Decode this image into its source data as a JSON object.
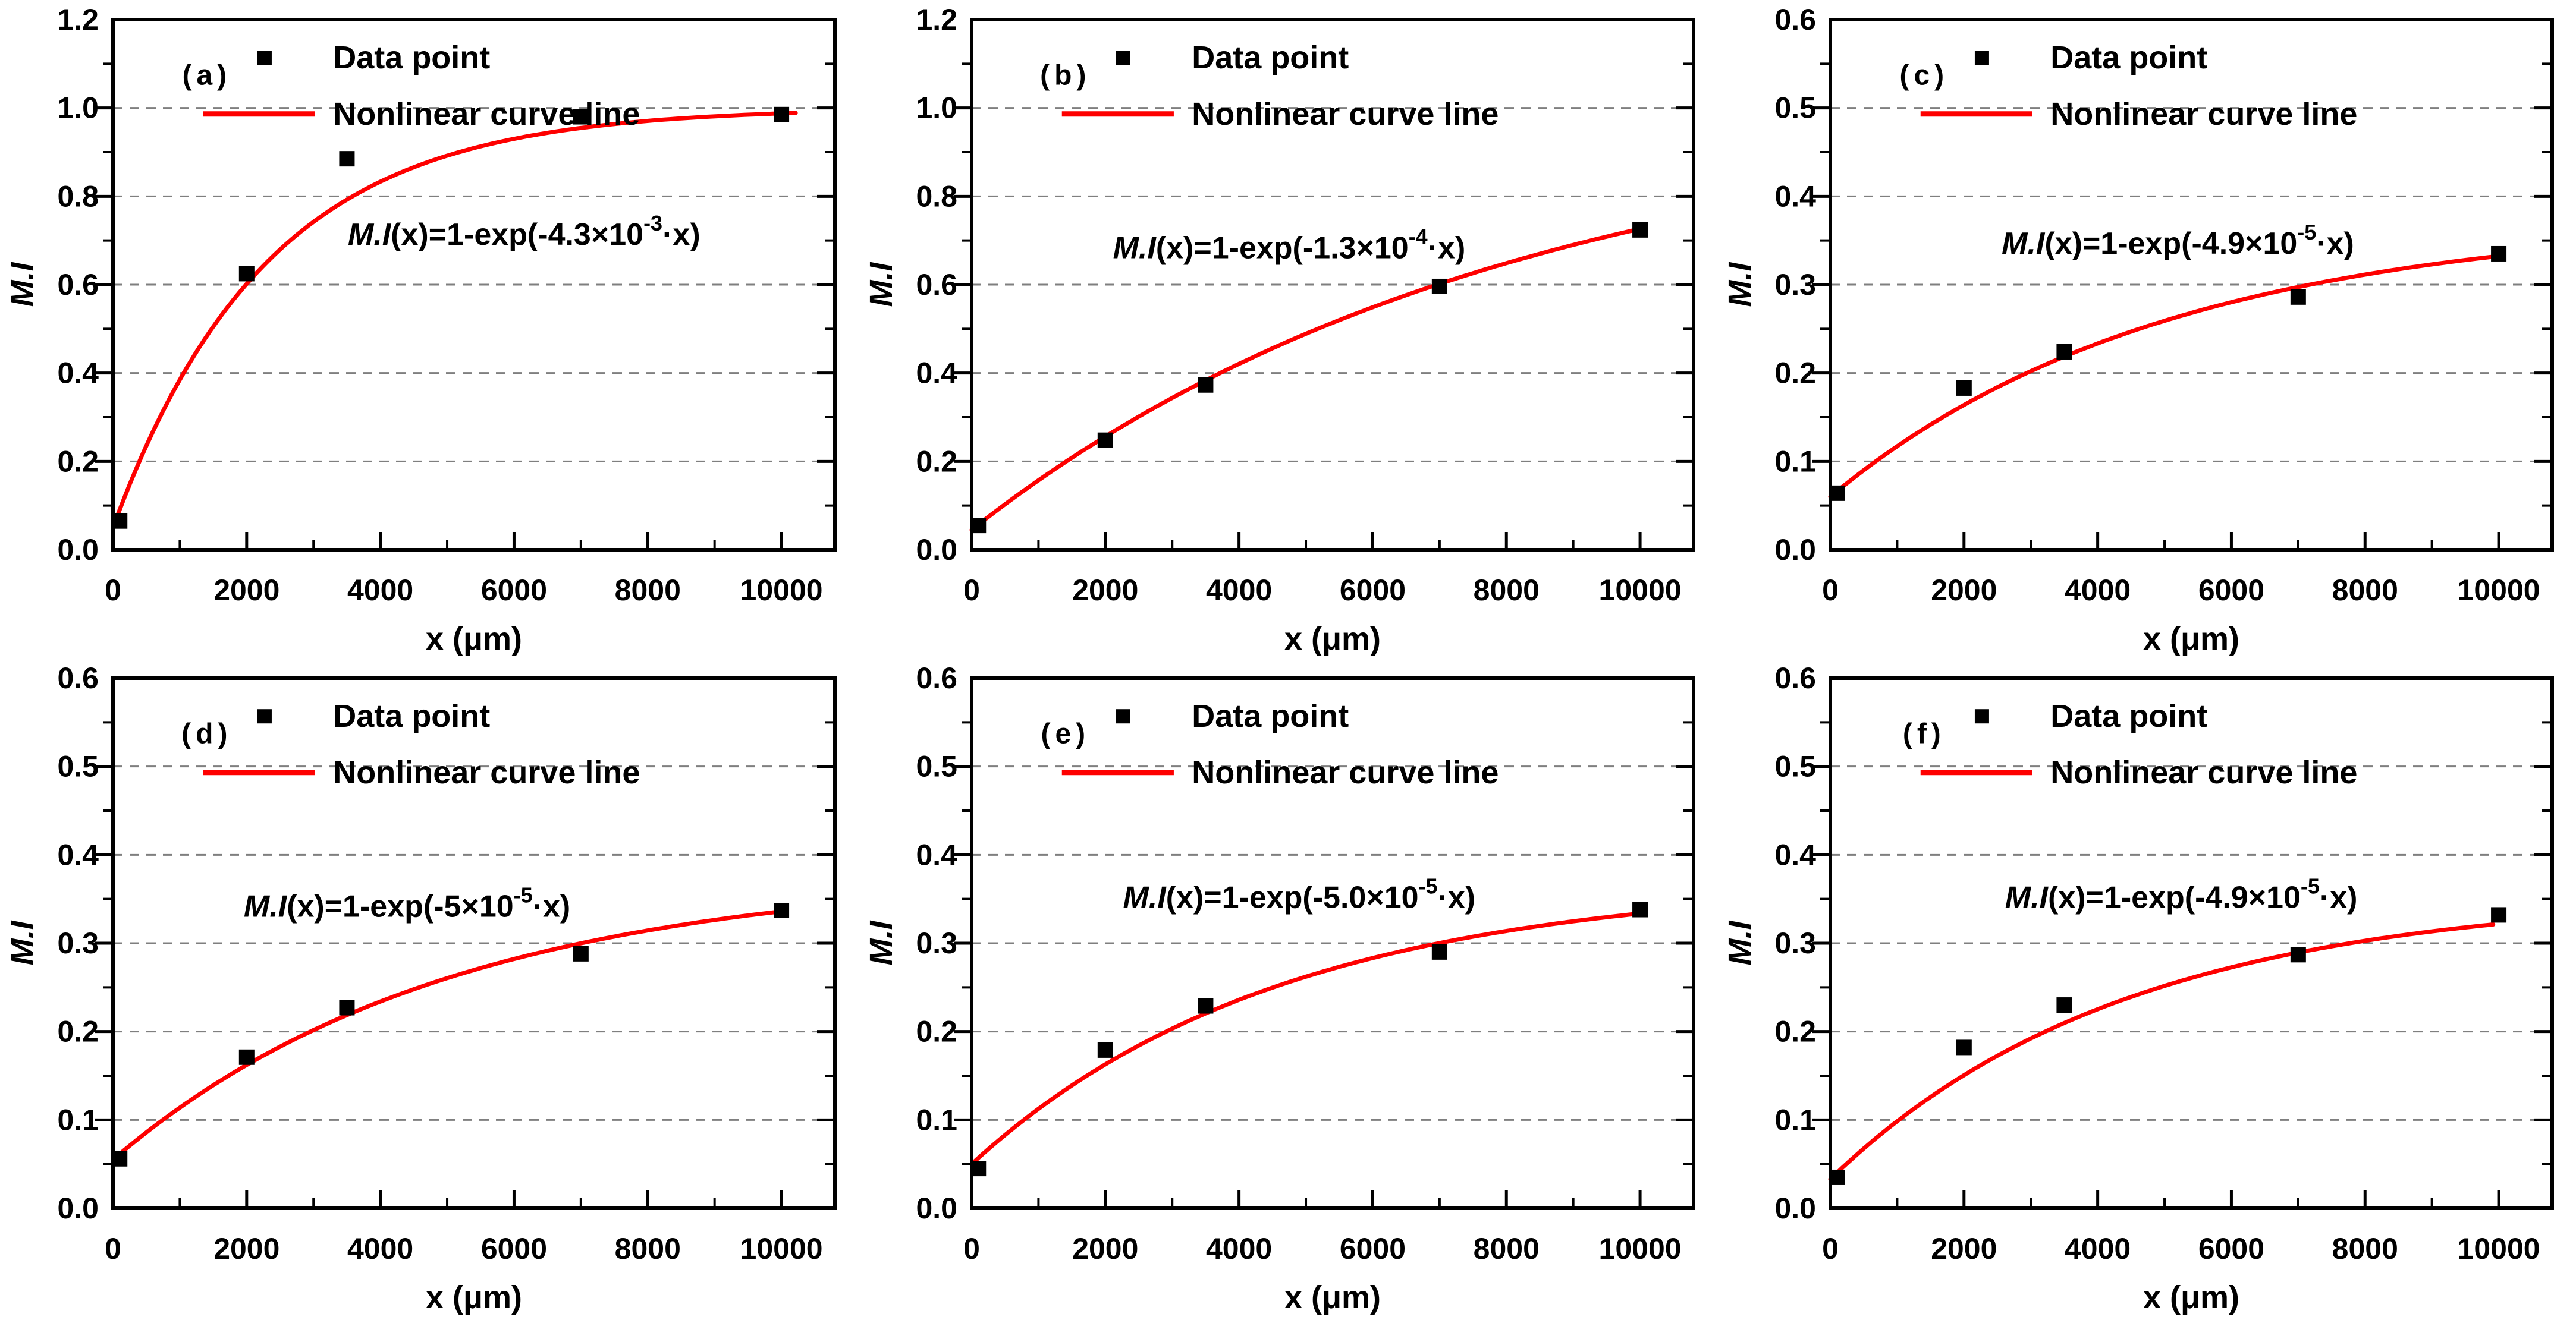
{
  "figure": {
    "description": "Six-panel figure of M.I versus x with exponential saturation fits",
    "background": "#ffffff"
  },
  "chart_data": {
    "type": "line",
    "grid": "horizontal dashed gridlines at major y values",
    "legend_position": "inside top-left of each panel",
    "x": {
      "label": "x (μm)",
      "lim": [
        0,
        10800
      ],
      "major_ticks": [
        0,
        2000,
        4000,
        6000,
        8000,
        10000
      ],
      "major_tick_labels": [
        "0",
        "2000",
        "4000",
        "6000",
        "8000",
        "10000"
      ],
      "minor_ticks": [
        1000,
        3000,
        5000,
        7000,
        9000
      ]
    },
    "y": {
      "label": "M.I"
    },
    "legend": {
      "marker_label": "Data point",
      "line_label": "Nonlinear curve line"
    },
    "colors": {
      "curve": "#fe0000",
      "marker": "#000000",
      "gridline": "#7f7f7f",
      "axis": "#000000",
      "text": "#000000"
    },
    "panels": [
      {
        "id": "a",
        "label": "(a)",
        "ylim": [
          0,
          1.2
        ],
        "y_major": 0.2,
        "y_minor": 0.1,
        "y_tick_labels": [
          "0.0",
          "0.2",
          "0.4",
          "0.6",
          "0.8",
          "1.0",
          "1.2"
        ],
        "equation": {
          "lead": "M.I",
          "pre": "(x)=1-exp(-4.3×10",
          "sup": "-3",
          "post": "·x)"
        },
        "eq_pos": [
          6150,
          0.69
        ],
        "points": [
          [
            100,
            0.065
          ],
          [
            2000,
            0.625
          ],
          [
            3500,
            0.885
          ],
          [
            7000,
            0.98
          ],
          [
            10000,
            0.985
          ]
        ],
        "curve": {
          "y0": 0.05,
          "asym": 1.0,
          "tau": 2300,
          "x_end": 10300
        }
      },
      {
        "id": "b",
        "label": "(b)",
        "ylim": [
          0,
          1.2
        ],
        "y_major": 0.2,
        "y_minor": 0.1,
        "y_tick_labels": [
          "0.0",
          "0.2",
          "0.4",
          "0.6",
          "0.8",
          "1.0",
          "1.2"
        ],
        "equation": {
          "lead": "M.I",
          "pre": "(x)=1-exp(-1.3×10",
          "sup": "-4",
          "post": "·x)"
        },
        "eq_pos": [
          4750,
          0.66
        ],
        "points": [
          [
            100,
            0.055
          ],
          [
            2000,
            0.248
          ],
          [
            3500,
            0.373
          ],
          [
            7000,
            0.596
          ],
          [
            10000,
            0.724
          ]
        ],
        "curve": {
          "y0": 0.045,
          "asym": 1.0,
          "tau": 8000,
          "x_end": 10000
        }
      },
      {
        "id": "c",
        "label": "(c)",
        "ylim": [
          0,
          0.6
        ],
        "y_major": 0.1,
        "y_minor": 0.05,
        "y_tick_labels": [
          "0.0",
          "0.1",
          "0.2",
          "0.3",
          "0.4",
          "0.5",
          "0.6"
        ],
        "equation": {
          "lead": "M.I",
          "pre": "(x)=1-exp(-4.9×10",
          "sup": "-5",
          "post": "·x)"
        },
        "eq_pos": [
          5200,
          0.335
        ],
        "points": [
          [
            100,
            0.064
          ],
          [
            2000,
            0.183
          ],
          [
            3500,
            0.224
          ],
          [
            7000,
            0.286
          ],
          [
            10000,
            0.335
          ]
        ],
        "curve": {
          "y0": 0.06,
          "asym": 0.375,
          "tau": 5000,
          "x_end": 10000
        }
      },
      {
        "id": "d",
        "label": "(d)",
        "ylim": [
          0,
          0.6
        ],
        "y_major": 0.1,
        "y_minor": 0.05,
        "y_tick_labels": [
          "0.0",
          "0.1",
          "0.2",
          "0.3",
          "0.4",
          "0.5",
          "0.6"
        ],
        "equation": {
          "lead": "M.I",
          "pre": "(x)=1-exp(-5×10",
          "sup": "-5",
          "post": "·x)"
        },
        "eq_pos": [
          4400,
          0.33
        ],
        "points": [
          [
            100,
            0.056
          ],
          [
            2000,
            0.171
          ],
          [
            3500,
            0.227
          ],
          [
            7000,
            0.288
          ],
          [
            10000,
            0.337
          ]
        ],
        "curve": {
          "y0": 0.055,
          "asym": 0.38,
          "tau": 5000,
          "x_end": 10000
        }
      },
      {
        "id": "e",
        "label": "(e)",
        "ylim": [
          0,
          0.6
        ],
        "y_major": 0.1,
        "y_minor": 0.05,
        "y_tick_labels": [
          "0.0",
          "0.1",
          "0.2",
          "0.3",
          "0.4",
          "0.5",
          "0.6"
        ],
        "equation": {
          "lead": "M.I",
          "pre": "(x)=1-exp(-5.0×10",
          "sup": "-5",
          "post": "·x)"
        },
        "eq_pos": [
          4900,
          0.34
        ],
        "points": [
          [
            100,
            0.045
          ],
          [
            2000,
            0.179
          ],
          [
            3500,
            0.229
          ],
          [
            7000,
            0.29
          ],
          [
            10000,
            0.338
          ]
        ],
        "curve": {
          "y0": 0.05,
          "asym": 0.37,
          "tau": 4600,
          "x_end": 10000
        }
      },
      {
        "id": "f",
        "label": "(f)",
        "ylim": [
          0,
          0.6
        ],
        "y_major": 0.1,
        "y_minor": 0.05,
        "y_tick_labels": [
          "0.0",
          "0.1",
          "0.2",
          "0.3",
          "0.4",
          "0.5",
          "0.6"
        ],
        "equation": {
          "lead": "M.I",
          "pre": "(x)=1-exp(-4.9×10",
          "sup": "-5",
          "post": "·x)"
        },
        "eq_pos": [
          5250,
          0.34
        ],
        "points": [
          [
            100,
            0.035
          ],
          [
            2000,
            0.182
          ],
          [
            3500,
            0.23
          ],
          [
            7000,
            0.287
          ],
          [
            10000,
            0.332
          ]
        ],
        "curve": {
          "y0": 0.033,
          "asym": 0.355,
          "tau": 4400,
          "x_end": 10000
        }
      }
    ]
  }
}
